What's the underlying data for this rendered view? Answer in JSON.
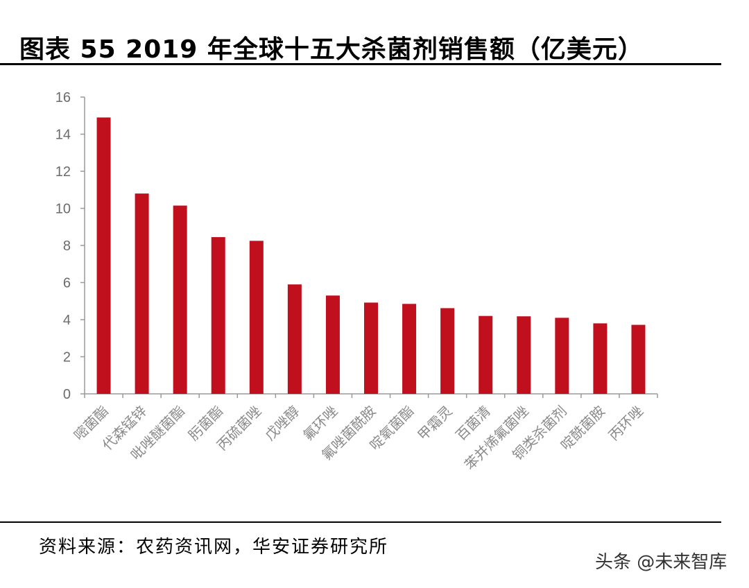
{
  "title": "图表 55 2019 年全球十五大杀菌剂销售额（亿美元）",
  "source": "资料来源：农药资讯网，华安证券研究所",
  "watermark": "头条 @未来智库",
  "colors": {
    "bar": "#C0101E",
    "axis": "#999999"
  },
  "chart_data": {
    "type": "bar",
    "categories": [
      "嘧菌酯",
      "代森锰锌",
      "吡唑醚菌酯",
      "肟菌酯",
      "丙硫菌唑",
      "戊唑醇",
      "氟环唑",
      "氟唑菌酰胺",
      "啶氧菌酯",
      "甲霜灵",
      "百菌清",
      "苯并烯氟菌唑",
      "铜类杀菌剂",
      "啶酰菌胺",
      "丙环唑"
    ],
    "values": [
      14.9,
      10.8,
      10.15,
      8.45,
      8.25,
      5.9,
      5.3,
      4.92,
      4.85,
      4.62,
      4.2,
      4.18,
      4.1,
      3.8,
      3.72
    ],
    "title": "",
    "xlabel": "",
    "ylabel": "",
    "ylim": [
      0,
      16
    ],
    "yticks": [
      0,
      2,
      4,
      6,
      8,
      10,
      12,
      14,
      16
    ],
    "grid": false,
    "legend": "none"
  }
}
